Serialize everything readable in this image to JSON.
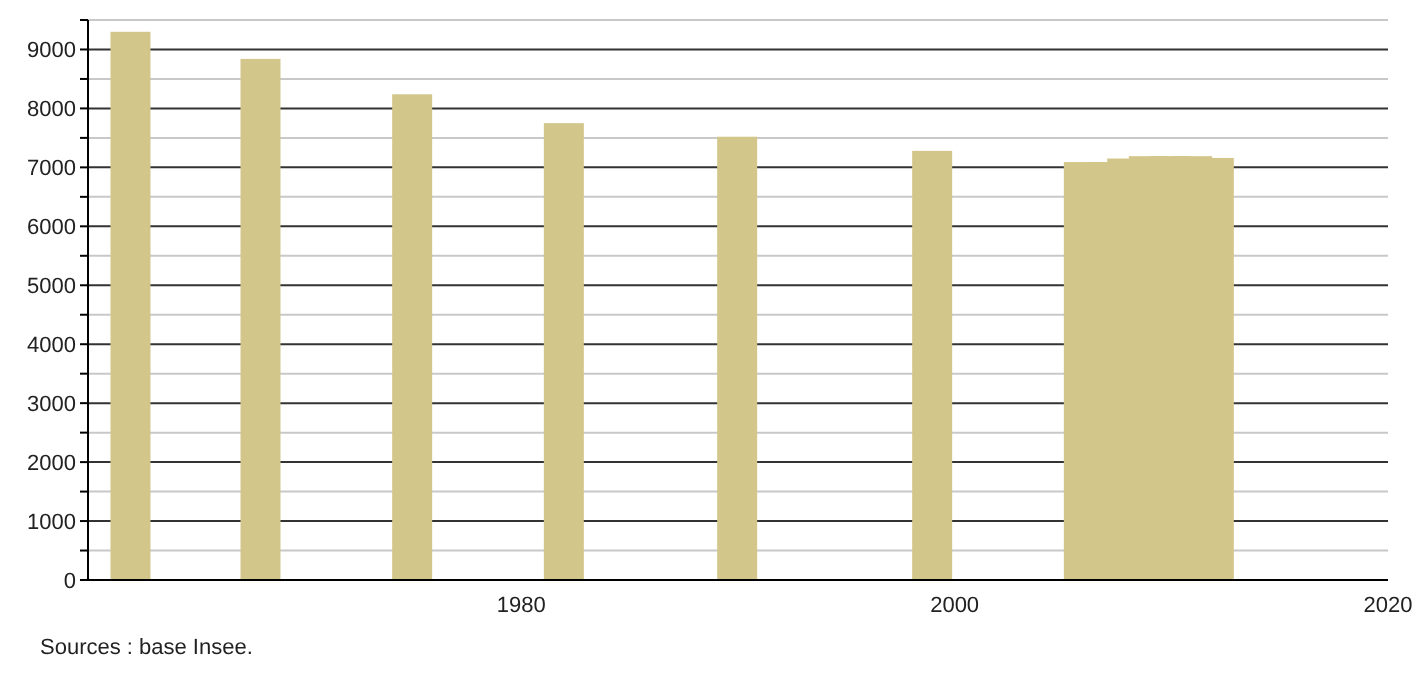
{
  "chart_data": {
    "type": "bar",
    "x": [
      1962,
      1968,
      1975,
      1982,
      1990,
      1999,
      2006,
      2007,
      2008,
      2009,
      2010,
      2011,
      2012
    ],
    "values": [
      9300,
      8840,
      8240,
      7750,
      7520,
      7280,
      7090,
      7090,
      7150,
      7190,
      7190,
      7190,
      7160
    ],
    "color": "#d3c68a",
    "xlim": [
      1960,
      2020
    ],
    "xticks": [
      1980,
      2000,
      2020
    ],
    "ylim": [
      0,
      9500
    ],
    "yticks": [
      0,
      {
        "value": 500,
        "label": null
      },
      1000,
      {
        "value": 1500,
        "label": null
      },
      2000,
      {
        "value": 2500,
        "label": null
      },
      3000,
      {
        "value": 3500,
        "label": null
      },
      4000,
      {
        "value": 4500,
        "label": null
      },
      5000,
      {
        "value": 5500,
        "label": null
      },
      6000,
      {
        "value": 6500,
        "label": null
      },
      7000,
      {
        "value": 7500,
        "label": null
      },
      8000,
      {
        "value": 8500,
        "label": null
      },
      9000,
      {
        "value": 9500,
        "label": null
      }
    ],
    "grid": "y",
    "annotations": [
      "Sources : base Insee."
    ]
  }
}
